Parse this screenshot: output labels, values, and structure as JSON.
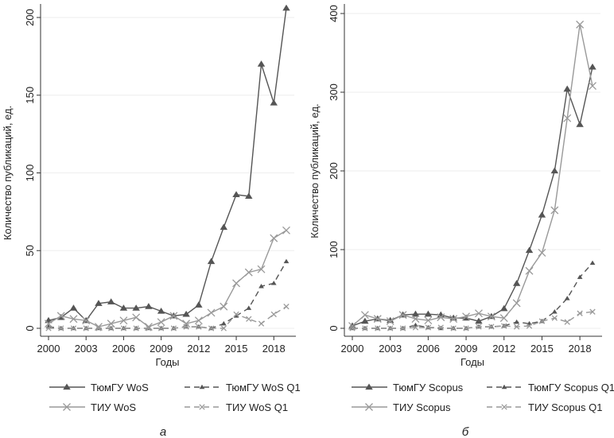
{
  "chart_data": [
    {
      "type": "line",
      "caption": "а",
      "xlabel": "Годы",
      "ylabel": "Количество публикаций, ед.",
      "x": [
        2000,
        2001,
        2002,
        2003,
        2004,
        2005,
        2006,
        2007,
        2008,
        2009,
        2010,
        2011,
        2012,
        2013,
        2014,
        2015,
        2016,
        2017,
        2018,
        2019
      ],
      "xticks": [
        2000,
        2003,
        2006,
        2009,
        2012,
        2015,
        2018
      ],
      "yticks": [
        0,
        50,
        100,
        150,
        200
      ],
      "ylim": [
        0,
        210
      ],
      "grid": true,
      "legend": "bottom",
      "series": [
        {
          "name": "ТюмГУ WoS",
          "style": "solid",
          "marker": "triangle",
          "color": "#555555",
          "values": [
            5,
            7,
            13,
            5,
            16,
            17,
            13,
            13,
            14,
            11,
            8,
            9,
            15,
            43,
            65,
            86,
            85,
            170,
            145,
            206
          ]
        },
        {
          "name": "ТюмГУ WoS Q1",
          "style": "dashed",
          "marker": "triangle",
          "color": "#555555",
          "values": [
            1,
            0,
            0,
            0,
            0,
            0,
            0,
            0,
            0,
            0,
            0,
            1,
            1,
            0,
            3,
            8,
            13,
            27,
            29,
            43
          ]
        },
        {
          "name": "ТИУ WoS",
          "style": "solid",
          "marker": "x",
          "color": "#999999",
          "values": [
            3,
            8,
            6,
            5,
            1,
            3,
            5,
            7,
            1,
            4,
            8,
            3,
            5,
            10,
            14,
            29,
            36,
            38,
            58,
            63
          ]
        },
        {
          "name": "ТИУ WoS Q1",
          "style": "dashed",
          "marker": "x",
          "color": "#999999",
          "values": [
            0,
            0,
            0,
            0,
            0,
            0,
            0,
            0,
            0,
            0,
            0,
            1,
            1,
            0,
            0,
            9,
            6,
            3,
            9,
            14
          ]
        }
      ]
    },
    {
      "type": "line",
      "caption": "б",
      "xlabel": "Годы",
      "ylabel": "Количество публикаций, ед.",
      "x": [
        2000,
        2001,
        2002,
        2003,
        2004,
        2005,
        2006,
        2007,
        2008,
        2009,
        2010,
        2011,
        2012,
        2013,
        2014,
        2015,
        2016,
        2017,
        2018,
        2019
      ],
      "xticks": [
        2000,
        2003,
        2006,
        2009,
        2012,
        2015,
        2018
      ],
      "yticks": [
        0,
        100,
        200,
        300,
        400
      ],
      "ylim": [
        0,
        405
      ],
      "grid": true,
      "legend": "bottom",
      "series": [
        {
          "name": "ТюмГУ Scopus",
          "style": "solid",
          "marker": "triangle",
          "color": "#555555",
          "values": [
            3,
            9,
            12,
            10,
            17,
            18,
            18,
            17,
            13,
            13,
            9,
            15,
            25,
            57,
            99,
            144,
            200,
            304,
            259,
            332
          ]
        },
        {
          "name": "ТюмГУ Scopus Q1",
          "style": "dashed",
          "marker": "triangle",
          "color": "#555555",
          "values": [
            0,
            0,
            0,
            0,
            0,
            4,
            1,
            0,
            0,
            0,
            2,
            2,
            3,
            8,
            6,
            9,
            21,
            38,
            65,
            83
          ]
        },
        {
          "name": "ТИУ Scopus",
          "style": "solid",
          "marker": "x",
          "color": "#999999",
          "values": [
            3,
            17,
            12,
            9,
            17,
            12,
            10,
            14,
            12,
            15,
            19,
            15,
            13,
            32,
            73,
            96,
            150,
            267,
            386,
            308
          ]
        },
        {
          "name": "ТИУ Scopus Q1",
          "style": "dashed",
          "marker": "x",
          "color": "#999999",
          "values": [
            0,
            0,
            0,
            0,
            0,
            1,
            1,
            1,
            0,
            0,
            2,
            2,
            3,
            2,
            3,
            9,
            13,
            8,
            19,
            21
          ]
        }
      ]
    }
  ]
}
